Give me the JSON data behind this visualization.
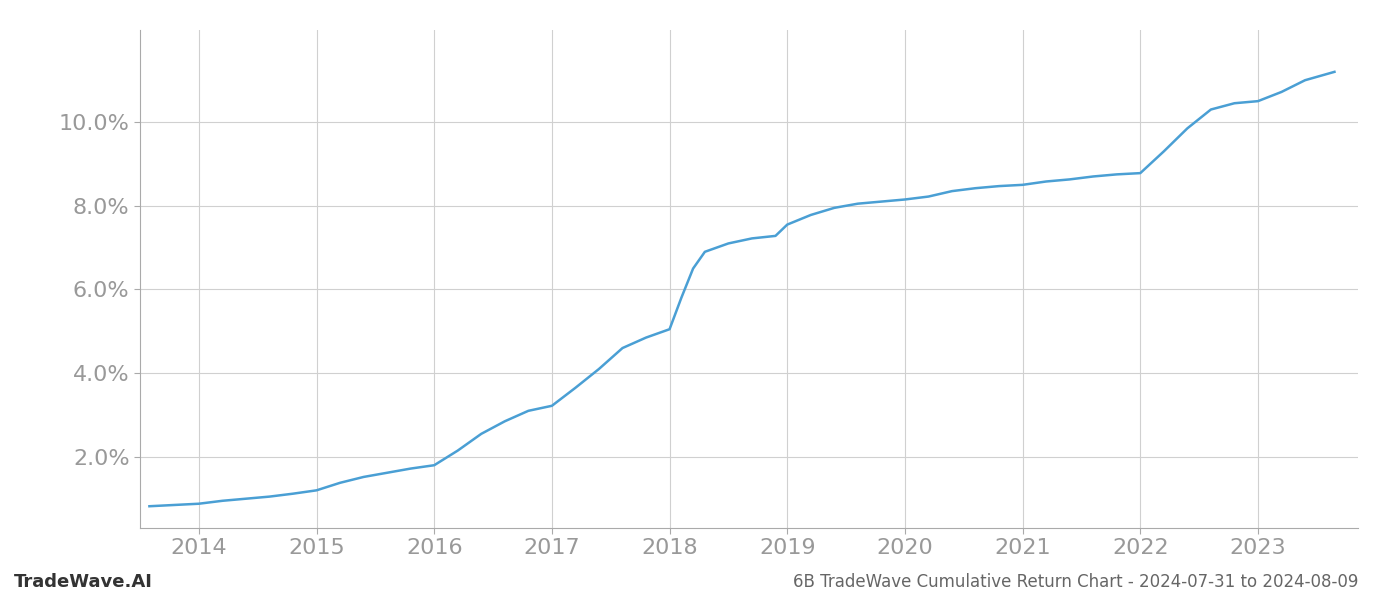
{
  "title": "6B TradeWave Cumulative Return Chart - 2024-07-31 to 2024-08-09",
  "watermark": "TradeWave.AI",
  "x_years": [
    2014,
    2015,
    2016,
    2017,
    2018,
    2019,
    2020,
    2021,
    2022,
    2023
  ],
  "x_values": [
    2013.58,
    2014.0,
    2014.2,
    2014.4,
    2014.6,
    2014.8,
    2015.0,
    2015.2,
    2015.4,
    2015.6,
    2015.8,
    2016.0,
    2016.2,
    2016.4,
    2016.6,
    2016.8,
    2017.0,
    2017.2,
    2017.4,
    2017.6,
    2017.8,
    2018.0,
    2018.1,
    2018.2,
    2018.3,
    2018.5,
    2018.7,
    2018.9,
    2019.0,
    2019.2,
    2019.4,
    2019.6,
    2019.8,
    2020.0,
    2020.2,
    2020.4,
    2020.6,
    2020.8,
    2021.0,
    2021.2,
    2021.4,
    2021.6,
    2021.8,
    2022.0,
    2022.2,
    2022.4,
    2022.6,
    2022.8,
    2023.0,
    2023.2,
    2023.4,
    2023.65
  ],
  "y_values": [
    0.82,
    0.88,
    0.95,
    1.0,
    1.05,
    1.12,
    1.2,
    1.38,
    1.52,
    1.62,
    1.72,
    1.8,
    2.15,
    2.55,
    2.85,
    3.1,
    3.22,
    3.65,
    4.1,
    4.6,
    4.85,
    5.05,
    5.8,
    6.5,
    6.9,
    7.1,
    7.22,
    7.28,
    7.55,
    7.78,
    7.95,
    8.05,
    8.1,
    8.15,
    8.22,
    8.35,
    8.42,
    8.47,
    8.5,
    8.58,
    8.63,
    8.7,
    8.75,
    8.78,
    9.3,
    9.85,
    10.3,
    10.45,
    10.5,
    10.72,
    11.0,
    11.2
  ],
  "line_color": "#4a9fd4",
  "line_width": 1.8,
  "background_color": "#ffffff",
  "grid_color": "#d0d0d0",
  "y_ticks": [
    2.0,
    4.0,
    6.0,
    8.0,
    10.0
  ],
  "y_lim": [
    0.3,
    12.2
  ],
  "x_lim": [
    2013.5,
    2023.85
  ],
  "tick_label_color": "#999999",
  "title_color": "#666666",
  "watermark_color": "#333333",
  "tick_fontsize": 16,
  "title_fontsize": 12,
  "watermark_fontsize": 13
}
